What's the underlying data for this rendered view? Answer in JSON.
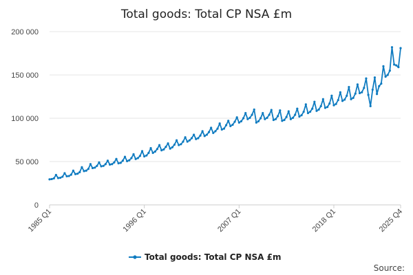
{
  "chart_data": {
    "type": "line",
    "title": "Total goods: Total CP NSA £m",
    "xlabel": "",
    "ylabel": "",
    "ylim": [
      0,
      200000
    ],
    "y_ticks": [
      {
        "value": 0,
        "label": "0"
      },
      {
        "value": 50000,
        "label": "50 000"
      },
      {
        "value": 100000,
        "label": "100 000"
      },
      {
        "value": 150000,
        "label": "150 000"
      },
      {
        "value": 200000,
        "label": "200 000"
      }
    ],
    "x_ticks": [
      {
        "index": 0,
        "label": "1985 Q1"
      },
      {
        "index": 44,
        "label": "1996 Q1"
      },
      {
        "index": 88,
        "label": "2007 Q1"
      },
      {
        "index": 132,
        "label": "2018 Q1"
      },
      {
        "index": 163,
        "label": "2025 Q4"
      }
    ],
    "x_start": "1985 Q1",
    "x_end": "2025 Q4",
    "legend": {
      "position": "bottom",
      "label": "Total goods: Total CP NSA £m"
    },
    "colors": {
      "series": "#0f7bc0"
    },
    "series": [
      {
        "name": "Total goods: Total CP NSA £m",
        "x": [
          "1985 Q1",
          "1985 Q2",
          "1985 Q3",
          "1985 Q4",
          "1986 Q1",
          "1986 Q2",
          "1986 Q3",
          "1986 Q4",
          "1987 Q1",
          "1987 Q2",
          "1987 Q3",
          "1987 Q4",
          "1988 Q1",
          "1988 Q2",
          "1988 Q3",
          "1988 Q4",
          "1989 Q1",
          "1989 Q2",
          "1989 Q3",
          "1989 Q4",
          "1990 Q1",
          "1990 Q2",
          "1990 Q3",
          "1990 Q4",
          "1991 Q1",
          "1991 Q2",
          "1991 Q3",
          "1991 Q4",
          "1992 Q1",
          "1992 Q2",
          "1992 Q3",
          "1992 Q4",
          "1993 Q1",
          "1993 Q2",
          "1993 Q3",
          "1993 Q4",
          "1994 Q1",
          "1994 Q2",
          "1994 Q3",
          "1994 Q4",
          "1995 Q1",
          "1995 Q2",
          "1995 Q3",
          "1995 Q4",
          "1996 Q1",
          "1996 Q2",
          "1996 Q3",
          "1996 Q4",
          "1997 Q1",
          "1997 Q2",
          "1997 Q3",
          "1997 Q4",
          "1998 Q1",
          "1998 Q2",
          "1998 Q3",
          "1998 Q4",
          "1999 Q1",
          "1999 Q2",
          "1999 Q3",
          "1999 Q4",
          "2000 Q1",
          "2000 Q2",
          "2000 Q3",
          "2000 Q4",
          "2001 Q1",
          "2001 Q2",
          "2001 Q3",
          "2001 Q4",
          "2002 Q1",
          "2002 Q2",
          "2002 Q3",
          "2002 Q4",
          "2003 Q1",
          "2003 Q2",
          "2003 Q3",
          "2003 Q4",
          "2004 Q1",
          "2004 Q2",
          "2004 Q3",
          "2004 Q4",
          "2005 Q1",
          "2005 Q2",
          "2005 Q3",
          "2005 Q4",
          "2006 Q1",
          "2006 Q2",
          "2006 Q3",
          "2006 Q4",
          "2007 Q1",
          "2007 Q2",
          "2007 Q3",
          "2007 Q4",
          "2008 Q1",
          "2008 Q2",
          "2008 Q3",
          "2008 Q4",
          "2009 Q1",
          "2009 Q2",
          "2009 Q3",
          "2009 Q4",
          "2010 Q1",
          "2010 Q2",
          "2010 Q3",
          "2010 Q4",
          "2011 Q1",
          "2011 Q2",
          "2011 Q3",
          "2011 Q4",
          "2012 Q1",
          "2012 Q2",
          "2012 Q3",
          "2012 Q4",
          "2013 Q1",
          "2013 Q2",
          "2013 Q3",
          "2013 Q4",
          "2014 Q1",
          "2014 Q2",
          "2014 Q3",
          "2014 Q4",
          "2015 Q1",
          "2015 Q2",
          "2015 Q3",
          "2015 Q4",
          "2016 Q1",
          "2016 Q2",
          "2016 Q3",
          "2016 Q4",
          "2017 Q1",
          "2017 Q2",
          "2017 Q3",
          "2017 Q4",
          "2018 Q1",
          "2018 Q2",
          "2018 Q3",
          "2018 Q4",
          "2019 Q1",
          "2019 Q2",
          "2019 Q3",
          "2019 Q4",
          "2020 Q1",
          "2020 Q2",
          "2020 Q3",
          "2020 Q4",
          "2021 Q1",
          "2021 Q2",
          "2021 Q3",
          "2021 Q4",
          "2022 Q1",
          "2022 Q2",
          "2022 Q3",
          "2022 Q4",
          "2023 Q1",
          "2023 Q2",
          "2023 Q3",
          "2023 Q4",
          "2024 Q1",
          "2024 Q2",
          "2024 Q3",
          "2024 Q4",
          "2025 Q1",
          "2025 Q2",
          "2025 Q3",
          "2025 Q4"
        ],
        "values": [
          29500,
          29800,
          30600,
          34500,
          31000,
          31300,
          32500,
          36500,
          33000,
          33300,
          34800,
          39500,
          35500,
          36000,
          37800,
          43500,
          39000,
          39500,
          41500,
          47000,
          42500,
          43000,
          45000,
          49000,
          44500,
          45000,
          47000,
          51000,
          46500,
          47000,
          49000,
          53000,
          48000,
          48500,
          51000,
          55500,
          50500,
          51500,
          54000,
          58500,
          53000,
          54000,
          56500,
          62000,
          56000,
          57000,
          60000,
          65500,
          60000,
          61500,
          64500,
          69000,
          63000,
          64000,
          67000,
          71000,
          65000,
          66500,
          69500,
          74500,
          69000,
          70000,
          73000,
          78000,
          73000,
          74500,
          77000,
          81000,
          76000,
          77000,
          80000,
          85000,
          79500,
          81000,
          84000,
          89000,
          83000,
          85000,
          88000,
          94000,
          87000,
          88000,
          92000,
          97000,
          91000,
          92500,
          96000,
          101000,
          95000,
          96500,
          100000,
          106000,
          99000,
          100500,
          104000,
          110000,
          95000,
          96500,
          100000,
          106000,
          99000,
          100500,
          104000,
          109500,
          98000,
          99000,
          102500,
          109000,
          97000,
          98000,
          101500,
          108000,
          99000,
          100500,
          104000,
          111000,
          102000,
          103500,
          107500,
          116000,
          106000,
          107500,
          111000,
          119000,
          108500,
          110000,
          114000,
          122000,
          112000,
          113000,
          117000,
          126000,
          115000,
          116500,
          121000,
          130000,
          120000,
          121500,
          126000,
          136000,
          122000,
          123500,
          128500,
          139000,
          129000,
          130000,
          135000,
          146000,
          127000,
          114000,
          133000,
          147000,
          128000,
          137000,
          140000,
          160000,
          148000,
          150000,
          155000,
          182000,
          162000,
          161000,
          159000,
          181000
        ]
      }
    ]
  },
  "source_label": "Source:"
}
